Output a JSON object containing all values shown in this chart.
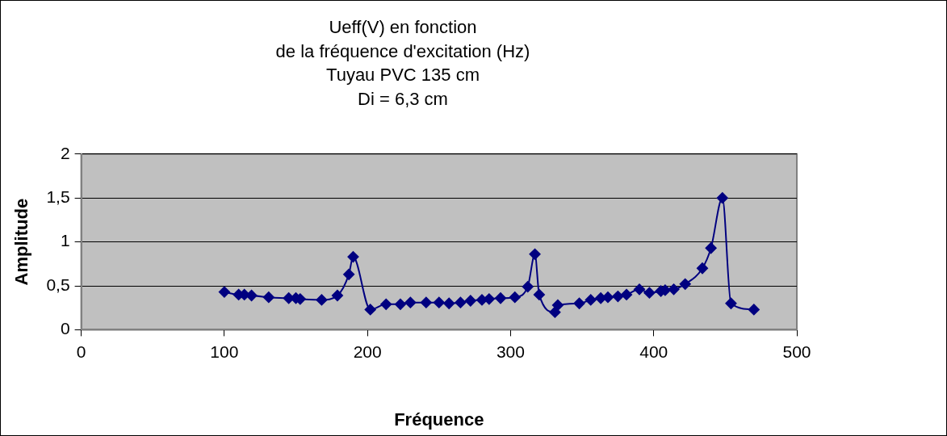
{
  "chart_data": {
    "type": "line",
    "title": [
      "Ueff(V) en fonction",
      "de la fréquence d'excitation (Hz)",
      "Tuyau PVC 135 cm",
      "Di = 6,3 cm"
    ],
    "xlabel": "Fréquence",
    "ylabel": "Amplitude",
    "series": [
      {
        "color": "#000080",
        "x": [
          100,
          110,
          114,
          119,
          131,
          145,
          150,
          153,
          168,
          179,
          187,
          190,
          202,
          213,
          223,
          230,
          241,
          250,
          257,
          265,
          272,
          280,
          285,
          293,
          303,
          312,
          317,
          320,
          331,
          333,
          348,
          356,
          363,
          368,
          375,
          381,
          390,
          397,
          405,
          408,
          414,
          422,
          434,
          440,
          448,
          454,
          470
        ],
        "values": [
          0.43,
          0.4,
          0.4,
          0.39,
          0.37,
          0.36,
          0.36,
          0.35,
          0.34,
          0.39,
          0.63,
          0.83,
          0.23,
          0.29,
          0.29,
          0.31,
          0.31,
          0.31,
          0.3,
          0.31,
          0.33,
          0.34,
          0.35,
          0.36,
          0.37,
          0.49,
          0.86,
          0.4,
          0.2,
          0.28,
          0.3,
          0.34,
          0.36,
          0.37,
          0.38,
          0.4,
          0.46,
          0.42,
          0.44,
          0.45,
          0.46,
          0.52,
          0.7,
          0.93,
          1.5,
          0.3,
          0.23
        ]
      }
    ],
    "xlim": [
      0,
      500
    ],
    "xticks": [
      0,
      100,
      200,
      300,
      400,
      500
    ],
    "ylim": [
      0,
      2
    ],
    "yticks": [
      {
        "value": 0,
        "label": "0"
      },
      {
        "value": 0.5,
        "label": "0,5"
      },
      {
        "value": 1,
        "label": "1"
      },
      {
        "value": 1.5,
        "label": "1,5"
      },
      {
        "value": 2,
        "label": "2"
      }
    ],
    "grid": "y",
    "legend": false,
    "marker": "diamond",
    "line_style": "solid"
  }
}
